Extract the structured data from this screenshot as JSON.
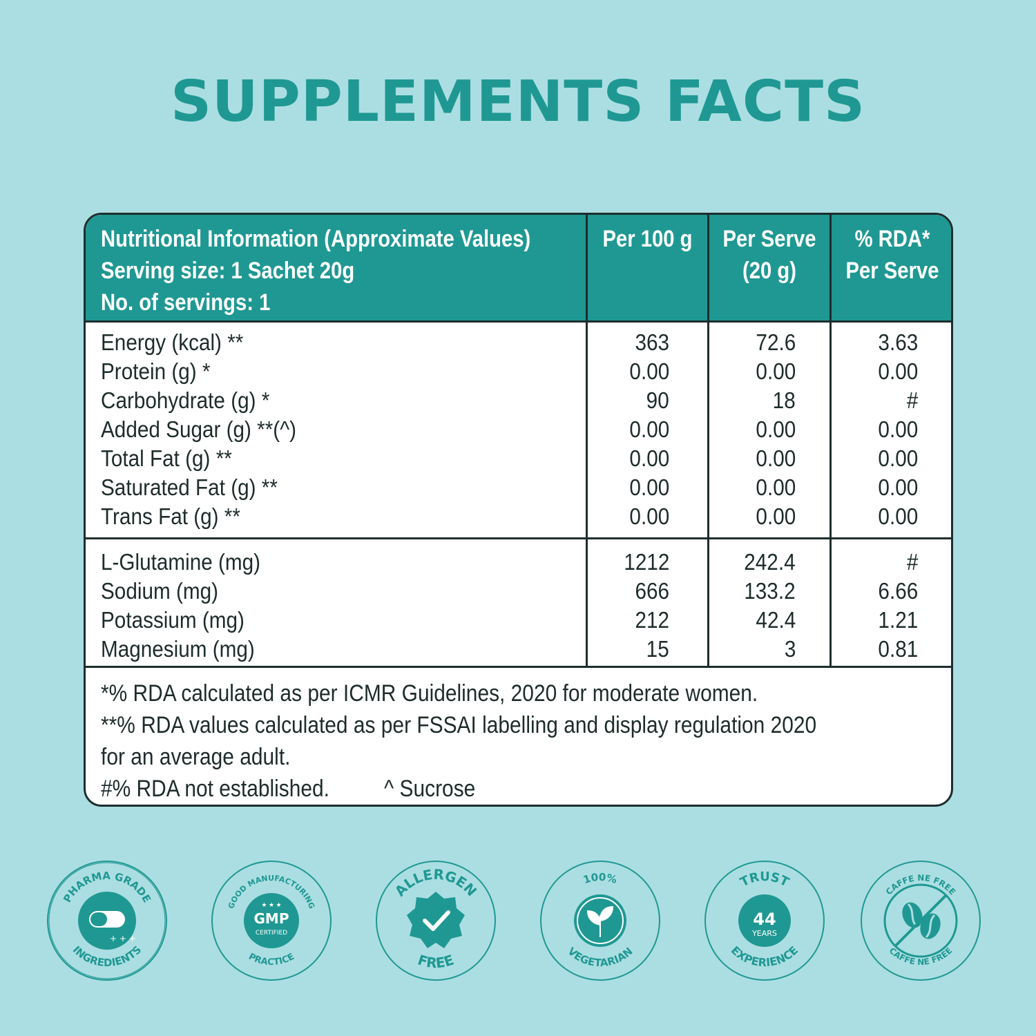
{
  "title": "SUPPLEMENTS FACTS",
  "header": {
    "col1": [
      "Nutritional Information (Approximate Values)",
      "Serving size: 1 Sachet 20g",
      "No. of servings: 1"
    ],
    "col2": [
      "Per 100 g"
    ],
    "col3": [
      "Per Serve",
      "(20 g)"
    ],
    "col4": [
      "% RDA*",
      "Per Serve"
    ]
  },
  "group1": [
    {
      "name": "Energy (kcal) **",
      "per100": "363",
      "perServe": "72.6",
      "rda": "3.63"
    },
    {
      "name": "Protein (g) *",
      "per100": "0.00",
      "perServe": "0.00",
      "rda": "0.00"
    },
    {
      "name": "Carbohydrate (g) *",
      "per100": "90",
      "perServe": "18",
      "rda": "#"
    },
    {
      "name": "Added Sugar (g) **(^)",
      "per100": "0.00",
      "perServe": "0.00",
      "rda": "0.00"
    },
    {
      "name": "Total Fat (g) **",
      "per100": "0.00",
      "perServe": "0.00",
      "rda": "0.00"
    },
    {
      "name": "Saturated Fat (g) **",
      "per100": "0.00",
      "perServe": "0.00",
      "rda": "0.00"
    },
    {
      "name": "Trans Fat (g) **",
      "per100": "0.00",
      "perServe": "0.00",
      "rda": "0.00"
    }
  ],
  "group2": [
    {
      "name": "L-Glutamine (mg)",
      "per100": "1212",
      "perServe": "242.4",
      "rda": "#"
    },
    {
      "name": "Sodium (mg)",
      "per100": "666",
      "perServe": "133.2",
      "rda": "6.66"
    },
    {
      "name": "Potassium (mg)",
      "per100": "212",
      "perServe": "42.4",
      "rda": "1.21"
    },
    {
      "name": "Magnesium (mg)",
      "per100": "15",
      "perServe": "3",
      "rda": "0.81"
    }
  ],
  "footnotes": {
    "line1": "*% RDA calculated as per ICMR Guidelines, 2020  for moderate women.",
    "line2": "**% RDA values calculated as per FSSAI labelling and display regulation 2020",
    "line3": "for an average adult.",
    "line4a": "#% RDA not established.",
    "line4b": "^ Sucrose"
  },
  "badges": [
    {
      "icon": "capsule-icon",
      "top": "PHARMA GRADE",
      "bottom": "INGREDIENTS"
    },
    {
      "icon": "gmp-seal-icon",
      "top": "GOOD MANUFACTURING",
      "bottom": "PRACTICE",
      "inner": "GMP",
      "inner2": "CERTIFIED"
    },
    {
      "icon": "check-badge-icon",
      "top": "ALLERGEN",
      "bottom": "FREE"
    },
    {
      "icon": "leaf-icon",
      "top": "100%",
      "bottom": "VEGETARIAN"
    },
    {
      "icon": "trust-seal-icon",
      "top": "TRUST",
      "bottom": "EXPERIENCE",
      "inner": "44",
      "inner2": "YEARS"
    },
    {
      "icon": "coffee-bean-crossed-icon",
      "top": "CAFFE NE FREE",
      "bottom": "CAFFE NE FREE"
    }
  ],
  "colors": {
    "teal": "#1f9893",
    "background": "#abdee2",
    "ink": "#1d2d2d"
  }
}
